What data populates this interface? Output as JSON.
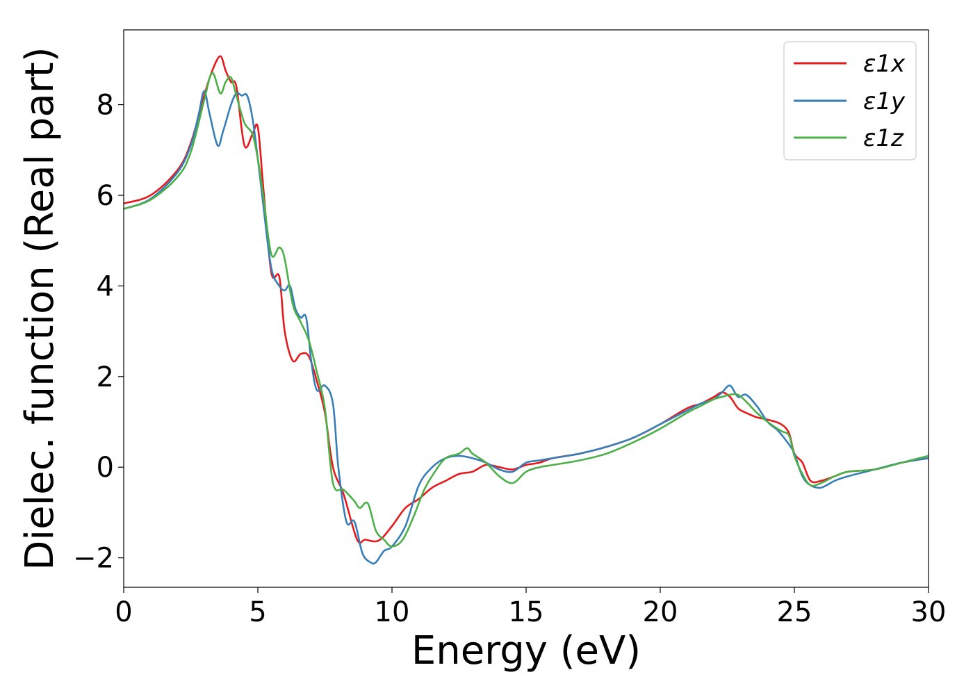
{
  "chart_data": {
    "type": "line",
    "xlabel": "Energy (eV)",
    "ylabel": "Dielec. function (Real part)",
    "xlim": [
      0,
      30
    ],
    "ylim": [
      -2.65,
      9.65
    ],
    "xticks": [
      0,
      5,
      10,
      15,
      20,
      25,
      30
    ],
    "xtick_labels": [
      "0",
      "5",
      "10",
      "15",
      "20",
      "25",
      "30"
    ],
    "yticks": [
      -2,
      0,
      2,
      4,
      6,
      8
    ],
    "ytick_labels": [
      "−2",
      "0",
      "2",
      "4",
      "6",
      "8"
    ],
    "legend_position": "top-right",
    "series": [
      {
        "name": "ε1x",
        "color": "#e41a1c",
        "x": [
          0,
          1,
          2,
          2.5,
          3,
          3.3,
          3.6,
          3.8,
          4.0,
          4.2,
          4.5,
          4.8,
          5.0,
          5.2,
          5.5,
          5.8,
          6.0,
          6.3,
          6.6,
          6.9,
          7.2,
          7.5,
          7.8,
          8.2,
          8.7,
          9.0,
          9.5,
          10.0,
          10.5,
          11.0,
          11.5,
          12.0,
          12.5,
          13.0,
          13.5,
          14.0,
          14.5,
          15.0,
          15.5,
          16.0,
          17.0,
          18.0,
          19.0,
          20.0,
          21.0,
          21.5,
          22.0,
          22.3,
          22.6,
          22.9,
          23.2,
          23.6,
          24.0,
          24.5,
          24.8,
          25.0,
          25.3,
          25.6,
          26.0,
          26.5,
          27.0,
          28.0,
          29.0,
          30.0
        ],
        "y": [
          5.82,
          6.0,
          6.55,
          7.15,
          8.2,
          8.75,
          9.07,
          8.75,
          8.5,
          8.4,
          7.1,
          7.35,
          7.5,
          6.2,
          4.3,
          4.2,
          3.0,
          2.35,
          2.5,
          2.45,
          1.9,
          1.2,
          0.0,
          -0.6,
          -1.6,
          -1.6,
          -1.62,
          -1.3,
          -0.9,
          -0.7,
          -0.45,
          -0.3,
          -0.15,
          -0.1,
          0.05,
          0.0,
          -0.05,
          0.05,
          0.1,
          0.2,
          0.3,
          0.45,
          0.65,
          0.95,
          1.3,
          1.4,
          1.55,
          1.65,
          1.55,
          1.3,
          1.2,
          1.1,
          1.05,
          0.95,
          0.75,
          0.3,
          0.1,
          -0.3,
          -0.3,
          -0.2,
          -0.1,
          -0.05,
          0.1,
          0.2
        ]
      },
      {
        "name": "ε1y",
        "color": "#377eb8",
        "x": [
          0,
          1,
          2,
          2.5,
          2.8,
          3.0,
          3.2,
          3.5,
          3.7,
          4.0,
          4.2,
          4.4,
          4.6,
          4.8,
          5.0,
          5.2,
          5.5,
          5.8,
          6.0,
          6.2,
          6.4,
          6.6,
          6.8,
          7.0,
          7.2,
          7.5,
          7.8,
          8.0,
          8.3,
          8.6,
          8.9,
          9.2,
          9.4,
          9.7,
          10.0,
          10.5,
          11.0,
          11.5,
          12.0,
          12.5,
          13.0,
          13.5,
          14.0,
          14.5,
          15.0,
          15.5,
          16.0,
          17.0,
          18.0,
          19.0,
          20.0,
          21.0,
          21.5,
          22.0,
          22.3,
          22.6,
          22.9,
          23.2,
          23.6,
          24.0,
          24.4,
          24.8,
          25.0,
          25.3,
          25.6,
          26.0,
          26.5,
          27.0,
          28.0,
          29.0,
          30.0
        ],
        "y": [
          5.7,
          5.92,
          6.5,
          7.1,
          7.8,
          8.3,
          7.8,
          7.1,
          7.4,
          8.0,
          8.25,
          8.2,
          8.2,
          7.7,
          6.8,
          5.8,
          4.4,
          4.0,
          3.9,
          4.0,
          3.5,
          3.3,
          3.3,
          2.3,
          1.7,
          1.8,
          1.4,
          0.0,
          -1.2,
          -1.2,
          -1.9,
          -2.1,
          -2.1,
          -1.85,
          -1.75,
          -1.3,
          -0.4,
          0.0,
          0.2,
          0.25,
          0.2,
          0.1,
          -0.05,
          -0.1,
          0.1,
          0.15,
          0.2,
          0.3,
          0.45,
          0.65,
          0.95,
          1.25,
          1.4,
          1.5,
          1.65,
          1.8,
          1.55,
          1.6,
          1.35,
          1.0,
          0.8,
          0.5,
          0.3,
          -0.2,
          -0.4,
          -0.45,
          -0.3,
          -0.2,
          -0.05,
          0.1,
          0.2
        ]
      },
      {
        "name": "ε1z",
        "color": "#4daf4a",
        "x": [
          0,
          1,
          2,
          2.5,
          3.0,
          3.3,
          3.6,
          3.8,
          4.0,
          4.2,
          4.5,
          4.8,
          5.0,
          5.2,
          5.5,
          5.8,
          6.0,
          6.3,
          6.6,
          6.9,
          7.2,
          7.5,
          7.8,
          8.2,
          8.6,
          8.8,
          9.1,
          9.4,
          9.7,
          10.0,
          10.4,
          10.8,
          11.2,
          11.6,
          12.0,
          12.5,
          12.8,
          13.0,
          13.5,
          14.0,
          14.5,
          15.0,
          15.5,
          16.0,
          17.0,
          18.0,
          19.0,
          20.0,
          21.0,
          21.5,
          22.0,
          22.3,
          22.6,
          22.9,
          23.2,
          23.6,
          24.0,
          24.5,
          24.8,
          25.0,
          25.3,
          25.6,
          26.0,
          26.5,
          27.0,
          28.0,
          29.0,
          30.0
        ],
        "y": [
          5.7,
          5.9,
          6.4,
          6.95,
          8.1,
          8.7,
          8.25,
          8.5,
          8.6,
          8.2,
          7.6,
          7.35,
          6.8,
          6.0,
          4.7,
          4.85,
          4.6,
          3.6,
          3.2,
          2.8,
          2.1,
          1.3,
          -0.35,
          -0.5,
          -0.75,
          -0.9,
          -0.8,
          -1.4,
          -1.6,
          -1.75,
          -1.6,
          -1.1,
          -0.5,
          -0.1,
          0.2,
          0.3,
          0.42,
          0.3,
          0.1,
          -0.2,
          -0.35,
          -0.1,
          0.0,
          0.05,
          0.15,
          0.3,
          0.55,
          0.85,
          1.2,
          1.35,
          1.5,
          1.55,
          1.6,
          1.6,
          1.45,
          1.2,
          1.0,
          0.8,
          0.7,
          0.25,
          -0.15,
          -0.4,
          -0.35,
          -0.2,
          -0.1,
          -0.05,
          0.1,
          0.25
        ]
      }
    ]
  }
}
